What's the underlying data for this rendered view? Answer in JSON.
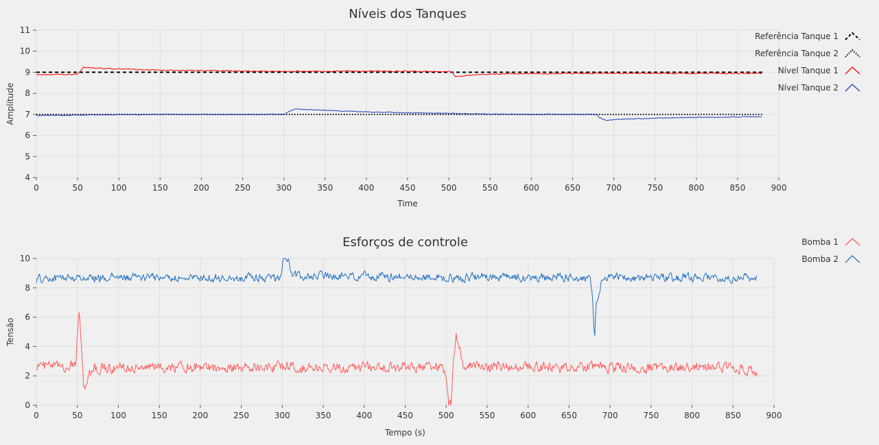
{
  "chart_data": [
    {
      "type": "line",
      "title": "Níveis dos Tanques",
      "xlabel": "Time",
      "ylabel": "Amplitude",
      "xlim": [
        0,
        900
      ],
      "ylim": [
        4,
        11
      ],
      "xticks": [
        0,
        50,
        100,
        150,
        200,
        250,
        300,
        350,
        400,
        450,
        500,
        550,
        600,
        650,
        700,
        750,
        800,
        850,
        900
      ],
      "yticks": [
        4,
        5,
        6,
        7,
        8,
        9,
        10,
        11
      ],
      "grid": true,
      "legend_position": "right",
      "series": [
        {
          "name": "Referência Tanque 1",
          "style": "dashed",
          "color": "#000000",
          "noise": 0,
          "x": [
            0,
            880
          ],
          "y": [
            9,
            9
          ]
        },
        {
          "name": "Referência Tanque 2",
          "style": "dotted",
          "color": "#000000",
          "noise": 0,
          "x": [
            0,
            880
          ],
          "y": [
            7,
            7
          ]
        },
        {
          "name": "Nível Tanque 1",
          "style": "solid",
          "color": "#ff0000",
          "noise": 0.04,
          "x": [
            0,
            50,
            53,
            57,
            70,
            100,
            150,
            200,
            250,
            300,
            350,
            400,
            450,
            500,
            504,
            508,
            515,
            530,
            560,
            600,
            650,
            700,
            750,
            800,
            850,
            880
          ],
          "y": [
            8.88,
            8.9,
            9.05,
            9.25,
            9.2,
            9.15,
            9.1,
            9.08,
            9.06,
            9.05,
            9.05,
            9.05,
            9.05,
            9.04,
            9.0,
            8.78,
            8.82,
            8.88,
            8.92,
            8.94,
            8.95,
            8.95,
            8.95,
            8.95,
            8.95,
            8.95
          ]
        },
        {
          "name": "Nível Tanque 2",
          "style": "solid",
          "color": "#1f3fb5",
          "noise": 0.03,
          "x": [
            0,
            50,
            100,
            150,
            200,
            250,
            300,
            305,
            310,
            315,
            330,
            350,
            400,
            450,
            500,
            550,
            600,
            650,
            680,
            682,
            690,
            700,
            750,
            800,
            850,
            880
          ],
          "y": [
            6.95,
            6.97,
            6.98,
            7.0,
            7.0,
            7.0,
            7.0,
            7.1,
            7.2,
            7.25,
            7.22,
            7.2,
            7.12,
            7.08,
            7.05,
            7.02,
            7.0,
            7.0,
            7.0,
            6.85,
            6.72,
            6.75,
            6.82,
            6.86,
            6.88,
            6.9
          ]
        }
      ]
    },
    {
      "type": "line",
      "title": "Esforços de controle",
      "xlabel": "Tempo (s)",
      "ylabel": "Tensão",
      "xlim": [
        0,
        900
      ],
      "ylim": [
        0,
        10
      ],
      "xticks": [
        0,
        50,
        100,
        150,
        200,
        250,
        300,
        350,
        400,
        450,
        500,
        550,
        600,
        650,
        700,
        750,
        800,
        850,
        900
      ],
      "yticks": [
        0,
        2,
        4,
        6,
        8,
        10
      ],
      "grid": true,
      "legend_position": "right",
      "series": [
        {
          "name": "Bomba 1",
          "style": "solid",
          "color": "#ff5a5a",
          "noise": 0.55,
          "x": [
            0,
            40,
            48,
            52,
            55,
            58,
            62,
            70,
            100,
            150,
            200,
            250,
            300,
            350,
            400,
            450,
            495,
            500,
            503,
            506,
            508,
            512,
            520,
            550,
            600,
            650,
            700,
            750,
            800,
            850,
            880
          ],
          "y": [
            2.7,
            2.6,
            3.0,
            6.8,
            4.0,
            1.0,
            1.8,
            2.5,
            2.6,
            2.6,
            2.6,
            2.6,
            2.6,
            2.6,
            2.6,
            2.6,
            2.6,
            2.0,
            0.0,
            0.0,
            2.5,
            4.8,
            2.8,
            2.6,
            2.6,
            2.6,
            2.6,
            2.6,
            2.6,
            2.6,
            2.3
          ]
        },
        {
          "name": "Bomba 2",
          "style": "solid",
          "color": "#1f6fbf",
          "noise": 0.45,
          "x": [
            0,
            50,
            100,
            150,
            200,
            250,
            296,
            300,
            301,
            308,
            310,
            312,
            350,
            400,
            450,
            500,
            550,
            600,
            650,
            676,
            679,
            681,
            683,
            690,
            700,
            750,
            800,
            850,
            880
          ],
          "y": [
            8.6,
            8.7,
            8.7,
            8.7,
            8.7,
            8.7,
            8.7,
            9.0,
            10.0,
            10.0,
            9.0,
            8.8,
            8.8,
            8.8,
            8.75,
            8.7,
            8.7,
            8.7,
            8.7,
            8.6,
            7.0,
            4.4,
            7.0,
            8.4,
            8.7,
            8.7,
            8.7,
            8.7,
            8.7
          ]
        }
      ]
    }
  ]
}
